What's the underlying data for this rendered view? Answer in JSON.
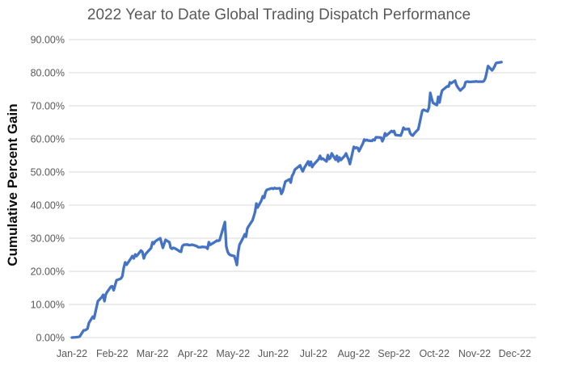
{
  "chart_data": {
    "type": "line",
    "title": "2022 Year to Date Global Trading Dispatch Performance",
    "ylabel": "Cumulative Percent Gain",
    "xlabel": "",
    "legend": "none",
    "grid": "horizontal",
    "ylim": [
      0,
      90
    ],
    "y_tick_step": 10,
    "y_tick_labels": [
      "0.00%",
      "10.00%",
      "20.00%",
      "30.00%",
      "40.00%",
      "50.00%",
      "60.00%",
      "70.00%",
      "80.00%",
      "90.00%"
    ],
    "x_tick_labels": [
      "Jan-22",
      "Feb-22",
      "Mar-22",
      "Apr-22",
      "May-22",
      "Jun-22",
      "Jul-22",
      "Aug-22",
      "Sep-22",
      "Oct-22",
      "Nov-22",
      "Dec-22"
    ],
    "colors": {
      "line": "#4472C4",
      "gridline": "#D9D9D9",
      "tick_label": "#595959",
      "title": "#595959",
      "y_axis_title": "#0d0d0d",
      "background": "#FFFFFF"
    },
    "series": [
      {
        "name": "Cumulative Percent Gain",
        "unit": "%",
        "points": [
          [
            "2022-01-01",
            0.0
          ],
          [
            "2022-01-04",
            0.1
          ],
          [
            "2022-01-06",
            0.2
          ],
          [
            "2022-01-07",
            0.3
          ],
          [
            "2022-01-10",
            2.2
          ],
          [
            "2022-01-11",
            2.2
          ],
          [
            "2022-01-12",
            2.4
          ],
          [
            "2022-01-13",
            2.7
          ],
          [
            "2022-01-14",
            4.4
          ],
          [
            "2022-01-17",
            6.3
          ],
          [
            "2022-01-18",
            5.8
          ],
          [
            "2022-01-19",
            7.5
          ],
          [
            "2022-01-20",
            9.3
          ],
          [
            "2022-01-21",
            11.0
          ],
          [
            "2022-01-24",
            12.2
          ],
          [
            "2022-01-25",
            12.9
          ],
          [
            "2022-01-26",
            11.0
          ],
          [
            "2022-01-27",
            13.0
          ],
          [
            "2022-01-28",
            13.7
          ],
          [
            "2022-01-31",
            15.4
          ],
          [
            "2022-02-01",
            15.5
          ],
          [
            "2022-02-02",
            14.3
          ],
          [
            "2022-02-03",
            15.8
          ],
          [
            "2022-02-04",
            17.3
          ],
          [
            "2022-02-07",
            17.8
          ],
          [
            "2022-02-08",
            18.5
          ],
          [
            "2022-02-09",
            21.0
          ],
          [
            "2022-02-10",
            22.7
          ],
          [
            "2022-02-11",
            22.0
          ],
          [
            "2022-02-14",
            23.9
          ],
          [
            "2022-02-15",
            24.6
          ],
          [
            "2022-02-16",
            23.9
          ],
          [
            "2022-02-17",
            25.1
          ],
          [
            "2022-02-18",
            24.6
          ],
          [
            "2022-02-21",
            26.3
          ],
          [
            "2022-02-22",
            25.9
          ],
          [
            "2022-02-23",
            23.9
          ],
          [
            "2022-02-24",
            25.1
          ],
          [
            "2022-02-25",
            25.6
          ],
          [
            "2022-02-28",
            27.0
          ],
          [
            "2022-03-01",
            28.8
          ],
          [
            "2022-03-02",
            28.3
          ],
          [
            "2022-03-03",
            29.0
          ],
          [
            "2022-03-04",
            29.3
          ],
          [
            "2022-03-07",
            30.0
          ],
          [
            "2022-03-08",
            28.5
          ],
          [
            "2022-03-09",
            27.1
          ],
          [
            "2022-03-10",
            28.3
          ],
          [
            "2022-03-11",
            29.5
          ],
          [
            "2022-03-14",
            28.8
          ],
          [
            "2022-03-15",
            27.1
          ],
          [
            "2022-03-16",
            26.8
          ],
          [
            "2022-03-17",
            27.1
          ],
          [
            "2022-03-18",
            27.0
          ],
          [
            "2022-03-21",
            26.3
          ],
          [
            "2022-03-22",
            26.0
          ],
          [
            "2022-03-23",
            25.9
          ],
          [
            "2022-03-24",
            27.6
          ],
          [
            "2022-03-25",
            28.0
          ],
          [
            "2022-03-28",
            28.1
          ],
          [
            "2022-03-29",
            27.9
          ],
          [
            "2022-03-31",
            28.0
          ],
          [
            "2022-04-01",
            28.0
          ],
          [
            "2022-04-04",
            27.6
          ],
          [
            "2022-04-05",
            27.3
          ],
          [
            "2022-04-07",
            27.3
          ],
          [
            "2022-04-08",
            27.4
          ],
          [
            "2022-04-11",
            27.3
          ],
          [
            "2022-04-12",
            26.8
          ],
          [
            "2022-04-13",
            28.8
          ],
          [
            "2022-04-14",
            28.0
          ],
          [
            "2022-04-18",
            29.0
          ],
          [
            "2022-04-19",
            29.3
          ],
          [
            "2022-04-20",
            29.2
          ],
          [
            "2022-04-21",
            29.4
          ],
          [
            "2022-04-25",
            34.9
          ],
          [
            "2022-04-26",
            27.5
          ],
          [
            "2022-04-27",
            25.9
          ],
          [
            "2022-04-28",
            25.2
          ],
          [
            "2022-04-29",
            24.9
          ],
          [
            "2022-05-02",
            24.6
          ],
          [
            "2022-05-03",
            23.4
          ],
          [
            "2022-05-04",
            21.9
          ],
          [
            "2022-05-05",
            25.8
          ],
          [
            "2022-05-06",
            28.0
          ],
          [
            "2022-05-09",
            30.3
          ],
          [
            "2022-05-10",
            31.2
          ],
          [
            "2022-05-11",
            30.5
          ],
          [
            "2022-05-12",
            32.9
          ],
          [
            "2022-05-13",
            33.6
          ],
          [
            "2022-05-16",
            35.4
          ],
          [
            "2022-05-17",
            36.6
          ],
          [
            "2022-05-18",
            38.0
          ],
          [
            "2022-05-19",
            40.5
          ],
          [
            "2022-05-20",
            39.3
          ],
          [
            "2022-05-23",
            41.5
          ],
          [
            "2022-05-24",
            42.7
          ],
          [
            "2022-05-25",
            42.2
          ],
          [
            "2022-05-26",
            43.9
          ],
          [
            "2022-05-27",
            44.6
          ],
          [
            "2022-05-31",
            45.1
          ],
          [
            "2022-06-01",
            44.9
          ],
          [
            "2022-06-02",
            45.2
          ],
          [
            "2022-06-03",
            45.0
          ],
          [
            "2022-06-06",
            45.1
          ],
          [
            "2022-06-07",
            43.4
          ],
          [
            "2022-06-08",
            44.1
          ],
          [
            "2022-06-09",
            45.6
          ],
          [
            "2022-06-10",
            47.1
          ],
          [
            "2022-06-13",
            47.8
          ],
          [
            "2022-06-14",
            46.8
          ],
          [
            "2022-06-15",
            48.8
          ],
          [
            "2022-06-16",
            49.5
          ],
          [
            "2022-06-17",
            50.7
          ],
          [
            "2022-06-21",
            52.0
          ],
          [
            "2022-06-22",
            50.9
          ],
          [
            "2022-06-23",
            50.2
          ],
          [
            "2022-06-24",
            51.2
          ],
          [
            "2022-06-27",
            53.2
          ],
          [
            "2022-06-28",
            52.0
          ],
          [
            "2022-06-29",
            53.1
          ],
          [
            "2022-06-30",
            51.5
          ],
          [
            "2022-07-01",
            52.2
          ],
          [
            "2022-07-05",
            53.9
          ],
          [
            "2022-07-06",
            54.9
          ],
          [
            "2022-07-07",
            53.9
          ],
          [
            "2022-07-08",
            54.1
          ],
          [
            "2022-07-11",
            53.2
          ],
          [
            "2022-07-12",
            55.1
          ],
          [
            "2022-07-13",
            53.9
          ],
          [
            "2022-07-14",
            54.3
          ],
          [
            "2022-07-15",
            55.6
          ],
          [
            "2022-07-18",
            53.7
          ],
          [
            "2022-07-19",
            54.9
          ],
          [
            "2022-07-20",
            53.2
          ],
          [
            "2022-07-21",
            54.4
          ],
          [
            "2022-07-22",
            53.6
          ],
          [
            "2022-07-25",
            54.9
          ],
          [
            "2022-07-26",
            55.6
          ],
          [
            "2022-07-27",
            54.6
          ],
          [
            "2022-07-28",
            53.8
          ],
          [
            "2022-07-29",
            52.4
          ],
          [
            "2022-08-01",
            57.6
          ],
          [
            "2022-08-02",
            57.2
          ],
          [
            "2022-08-03",
            57.4
          ],
          [
            "2022-08-04",
            57.3
          ],
          [
            "2022-08-05",
            56.3
          ],
          [
            "2022-08-08",
            58.6
          ],
          [
            "2022-08-09",
            59.8
          ],
          [
            "2022-08-10",
            59.5
          ],
          [
            "2022-08-11",
            59.7
          ],
          [
            "2022-08-12",
            59.5
          ],
          [
            "2022-08-15",
            59.4
          ],
          [
            "2022-08-16",
            59.8
          ],
          [
            "2022-08-17",
            59.6
          ],
          [
            "2022-08-18",
            60.5
          ],
          [
            "2022-08-19",
            60.5
          ],
          [
            "2022-08-22",
            60.4
          ],
          [
            "2022-08-23",
            59.3
          ],
          [
            "2022-08-24",
            60.1
          ],
          [
            "2022-08-25",
            61.7
          ],
          [
            "2022-08-26",
            61.0
          ],
          [
            "2022-08-29",
            62.0
          ],
          [
            "2022-08-30",
            62.4
          ],
          [
            "2022-08-31",
            62.1
          ],
          [
            "2022-09-01",
            62.4
          ],
          [
            "2022-09-02",
            61.2
          ],
          [
            "2022-09-06",
            61.0
          ],
          [
            "2022-09-07",
            62.1
          ],
          [
            "2022-09-08",
            63.4
          ],
          [
            "2022-09-09",
            62.9
          ],
          [
            "2022-09-12",
            63.0
          ],
          [
            "2022-09-13",
            61.7
          ],
          [
            "2022-09-14",
            61.2
          ],
          [
            "2022-09-15",
            61.0
          ],
          [
            "2022-09-16",
            61.6
          ],
          [
            "2022-09-19",
            62.9
          ],
          [
            "2022-09-20",
            64.6
          ],
          [
            "2022-09-21",
            66.6
          ],
          [
            "2022-09-22",
            68.5
          ],
          [
            "2022-09-23",
            68.8
          ],
          [
            "2022-09-26",
            68.3
          ],
          [
            "2022-09-27",
            69.5
          ],
          [
            "2022-09-28",
            73.9
          ],
          [
            "2022-09-29",
            72.2
          ],
          [
            "2022-09-30",
            70.9
          ],
          [
            "2022-10-03",
            70.2
          ],
          [
            "2022-10-04",
            72.7
          ],
          [
            "2022-10-05",
            71.0
          ],
          [
            "2022-10-06",
            73.1
          ],
          [
            "2022-10-07",
            74.6
          ],
          [
            "2022-10-10",
            75.6
          ],
          [
            "2022-10-11",
            75.9
          ],
          [
            "2022-10-12",
            75.8
          ],
          [
            "2022-10-13",
            77.1
          ],
          [
            "2022-10-14",
            76.8
          ],
          [
            "2022-10-17",
            77.6
          ],
          [
            "2022-10-18",
            76.3
          ],
          [
            "2022-10-19",
            75.6
          ],
          [
            "2022-10-20",
            75.1
          ],
          [
            "2022-10-21",
            74.6
          ],
          [
            "2022-10-24",
            75.7
          ],
          [
            "2022-10-25",
            77.1
          ],
          [
            "2022-10-26",
            77.3
          ],
          [
            "2022-10-27",
            77.3
          ],
          [
            "2022-10-28",
            77.2
          ],
          [
            "2022-10-31",
            77.3
          ],
          [
            "2022-11-01",
            77.3
          ],
          [
            "2022-11-02",
            77.4
          ],
          [
            "2022-11-03",
            77.3
          ],
          [
            "2022-11-04",
            77.3
          ],
          [
            "2022-11-07",
            77.3
          ],
          [
            "2022-11-08",
            77.5
          ],
          [
            "2022-11-09",
            78.3
          ],
          [
            "2022-11-10",
            80.0
          ],
          [
            "2022-11-11",
            82.0
          ],
          [
            "2022-11-14",
            80.7
          ],
          [
            "2022-11-15",
            81.2
          ],
          [
            "2022-11-16",
            82.0
          ],
          [
            "2022-11-17",
            82.9
          ],
          [
            "2022-11-18",
            83.0
          ],
          [
            "2022-11-21",
            83.2
          ]
        ]
      }
    ]
  }
}
